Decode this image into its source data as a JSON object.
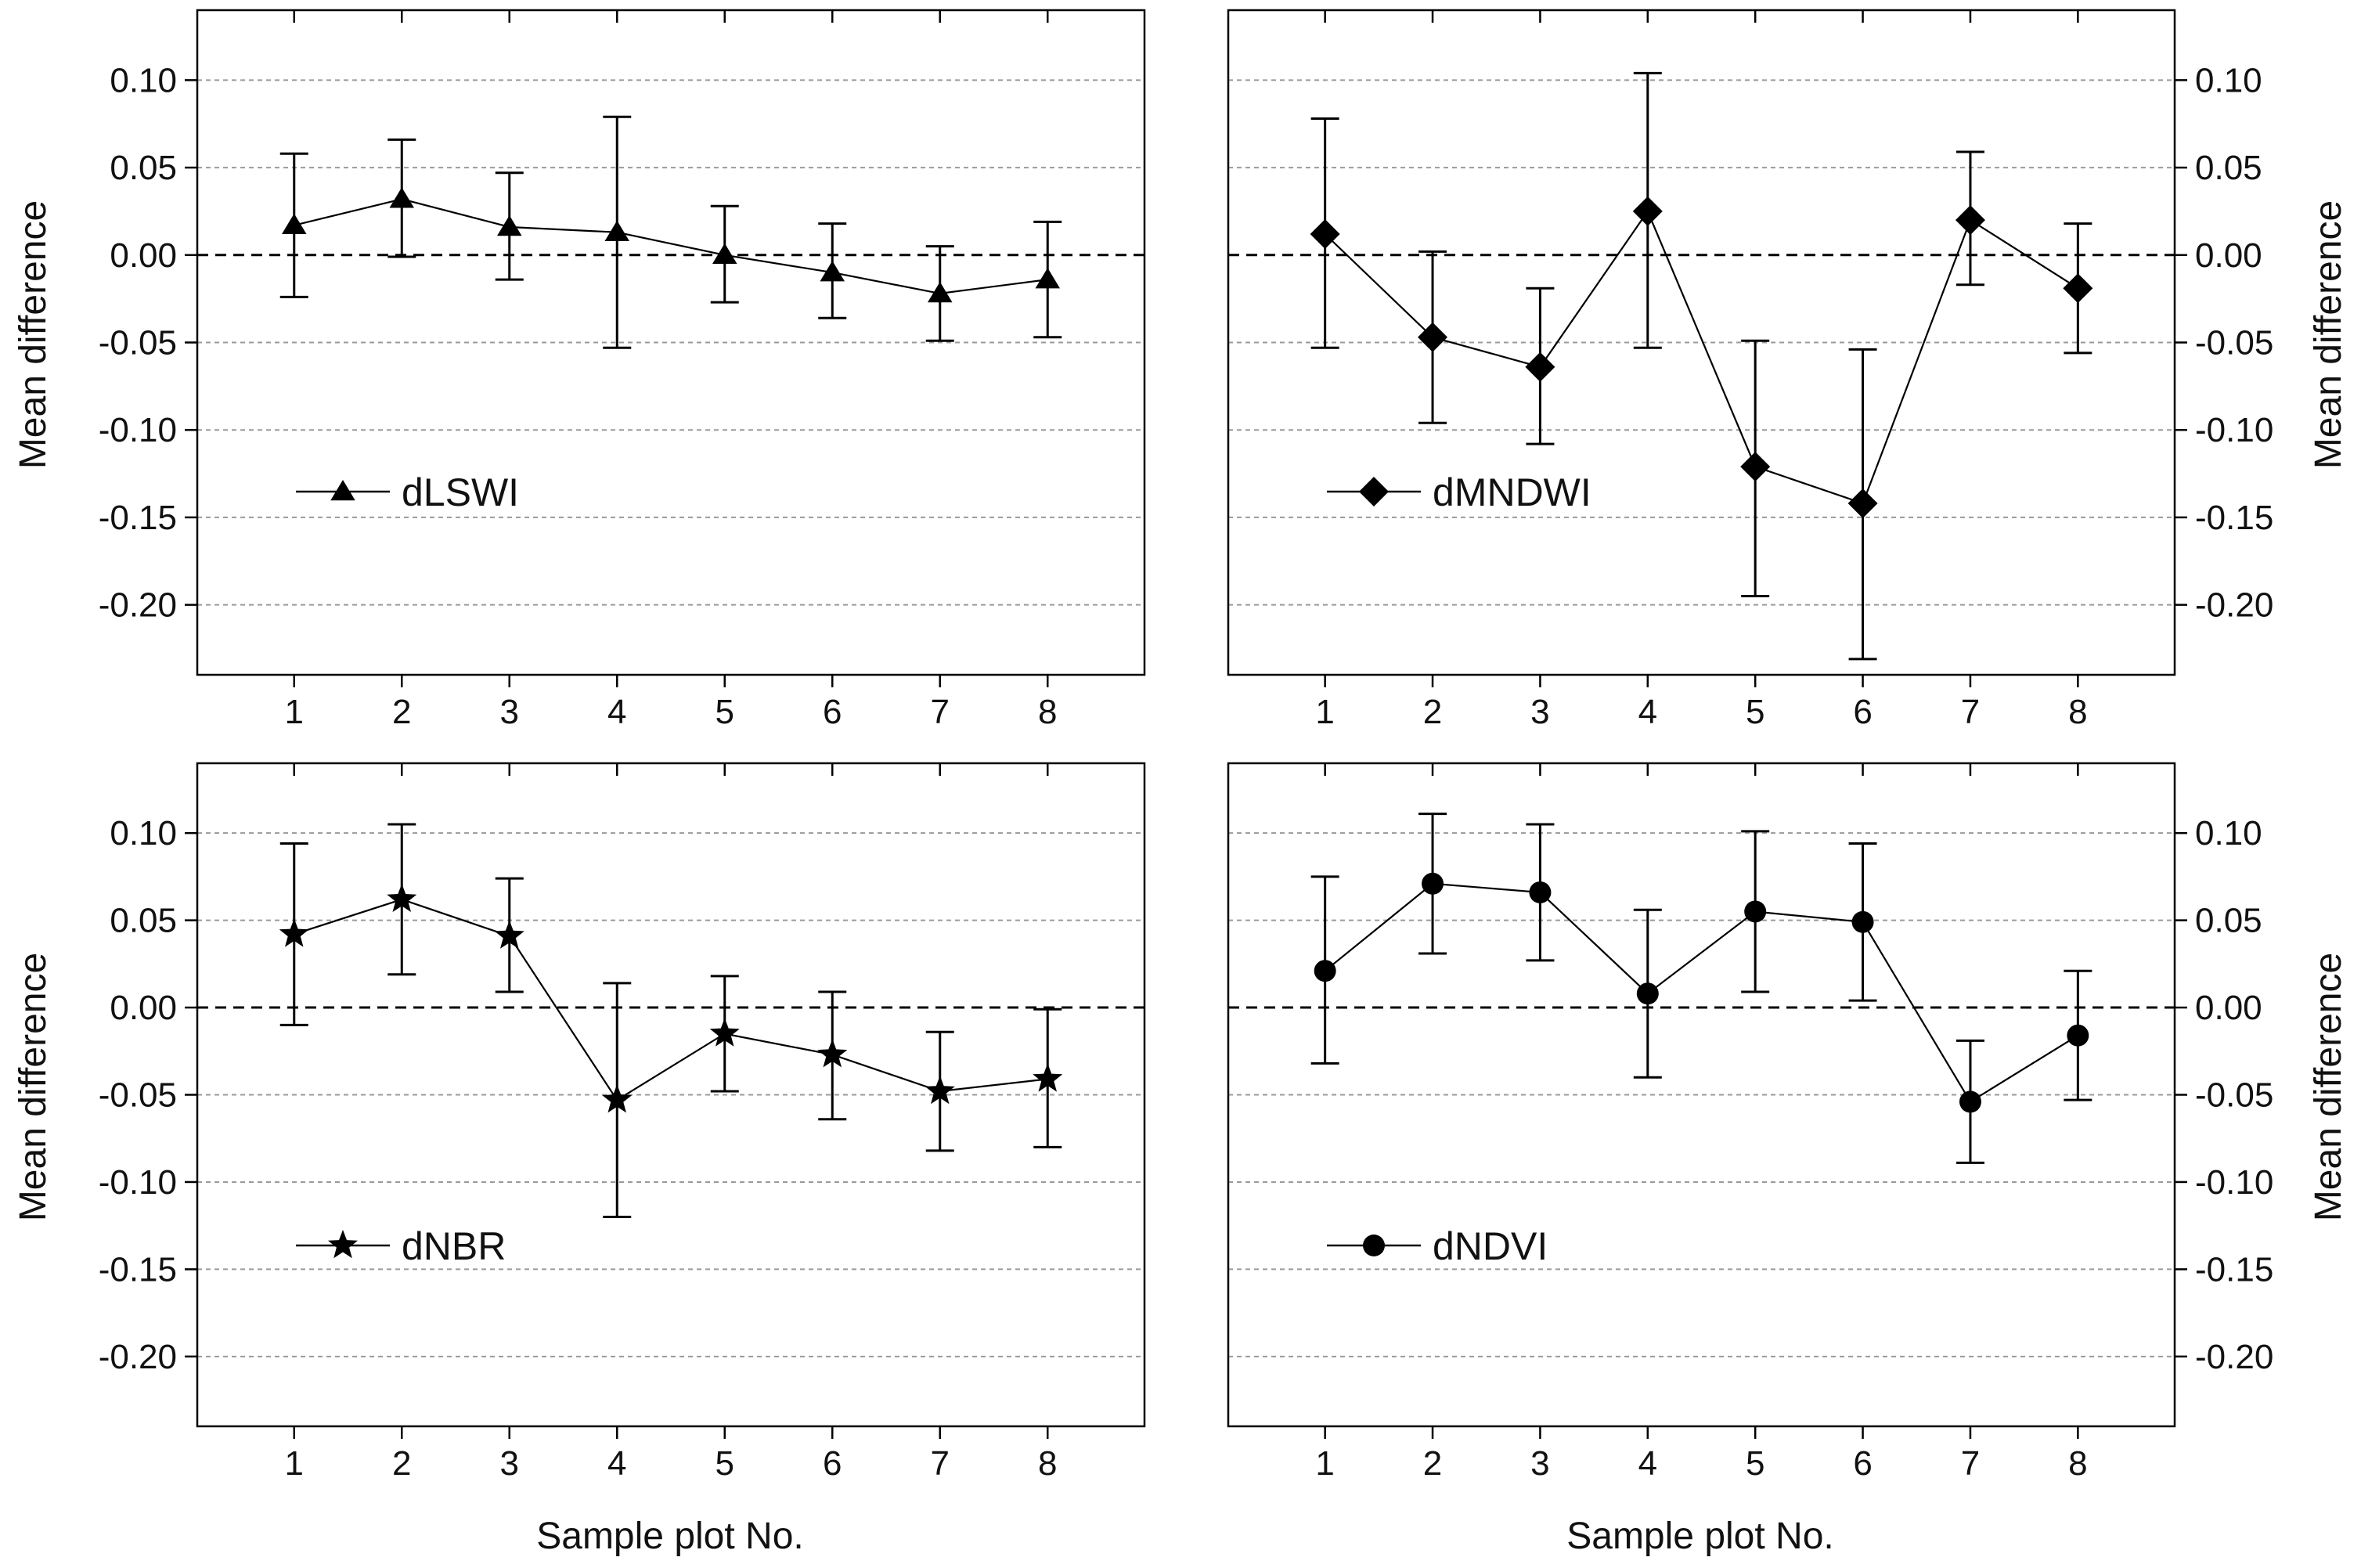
{
  "figure": {
    "xlabel": "Sample plot No."
  },
  "chart_data": [
    {
      "type": "line",
      "panel": "top-left",
      "x": [
        1,
        2,
        3,
        4,
        5,
        6,
        7,
        8
      ],
      "xticks": [
        "1",
        "2",
        "3",
        "4",
        "5",
        "6",
        "7",
        "8"
      ],
      "xlim": [
        0.1,
        8.9
      ],
      "ylim": [
        -0.24,
        0.14
      ],
      "yticks": [
        "0.10",
        "0.05",
        "0.00",
        "-0.05",
        "-0.10",
        "-0.15",
        "-0.20"
      ],
      "ylabel": "Mean difference",
      "yaxis_side": "left",
      "xlabel": "",
      "grid": true,
      "zero_line": "dashed",
      "legend_position": "left-middle",
      "series": [
        {
          "name": "dLSWI",
          "marker": "triangle",
          "values": [
            0.017,
            0.032,
            0.016,
            0.013,
            0.0,
            -0.01,
            -0.022,
            -0.014
          ],
          "err_low": [
            -0.024,
            -0.001,
            -0.014,
            -0.053,
            -0.027,
            -0.036,
            -0.049,
            -0.047
          ],
          "err_high": [
            0.058,
            0.066,
            0.047,
            0.079,
            0.028,
            0.018,
            0.005,
            0.019
          ]
        }
      ]
    },
    {
      "type": "line",
      "panel": "top-right",
      "x": [
        1,
        2,
        3,
        4,
        5,
        6,
        7,
        8
      ],
      "xticks": [
        "1",
        "2",
        "3",
        "4",
        "5",
        "6",
        "7",
        "8"
      ],
      "xlim": [
        0.1,
        8.9
      ],
      "ylim": [
        -0.24,
        0.14
      ],
      "yticks": [
        "0.10",
        "0.05",
        "0.00",
        "-0.05",
        "-0.10",
        "-0.15",
        "-0.20"
      ],
      "ylabel": "Mean difference",
      "yaxis_side": "right",
      "xlabel": "",
      "grid": true,
      "zero_line": "dashed",
      "legend_position": "left-middle",
      "series": [
        {
          "name": "dMNDWI",
          "marker": "diamond",
          "values": [
            0.012,
            -0.047,
            -0.064,
            0.025,
            -0.121,
            -0.142,
            0.02,
            -0.019
          ],
          "err_low": [
            -0.053,
            -0.096,
            -0.108,
            -0.053,
            -0.195,
            -0.231,
            -0.017,
            -0.056
          ],
          "err_high": [
            0.078,
            0.002,
            -0.019,
            0.104,
            -0.049,
            -0.054,
            0.059,
            0.018
          ]
        }
      ]
    },
    {
      "type": "line",
      "panel": "bottom-left",
      "x": [
        1,
        2,
        3,
        4,
        5,
        6,
        7,
        8
      ],
      "xticks": [
        "1",
        "2",
        "3",
        "4",
        "5",
        "6",
        "7",
        "8"
      ],
      "xlim": [
        0.1,
        8.9
      ],
      "ylim": [
        -0.24,
        0.14
      ],
      "yticks": [
        "0.10",
        "0.05",
        "0.00",
        "-0.05",
        "-0.10",
        "-0.15",
        "-0.20"
      ],
      "ylabel": "Mean difference",
      "yaxis_side": "left",
      "xlabel": "Sample plot No.",
      "grid": true,
      "zero_line": "dashed",
      "legend_position": "left-lower",
      "series": [
        {
          "name": "dNBR",
          "marker": "star",
          "values": [
            0.042,
            0.062,
            0.041,
            -0.053,
            -0.015,
            -0.027,
            -0.048,
            -0.041
          ],
          "err_low": [
            -0.01,
            0.019,
            0.009,
            -0.12,
            -0.048,
            -0.064,
            -0.082,
            -0.08
          ],
          "err_high": [
            0.094,
            0.105,
            0.074,
            0.014,
            0.018,
            0.009,
            -0.014,
            -0.001
          ]
        }
      ]
    },
    {
      "type": "line",
      "panel": "bottom-right",
      "x": [
        1,
        2,
        3,
        4,
        5,
        6,
        7,
        8
      ],
      "xticks": [
        "1",
        "2",
        "3",
        "4",
        "5",
        "6",
        "7",
        "8"
      ],
      "xlim": [
        0.1,
        8.9
      ],
      "ylim": [
        -0.24,
        0.14
      ],
      "yticks": [
        "0.10",
        "0.05",
        "0.00",
        "-0.05",
        "-0.10",
        "-0.15",
        "-0.20"
      ],
      "ylabel": "Mean difference",
      "yaxis_side": "right",
      "xlabel": "Sample plot No.",
      "grid": true,
      "zero_line": "dashed",
      "legend_position": "left-lower",
      "series": [
        {
          "name": "dNDVI",
          "marker": "circle",
          "values": [
            0.021,
            0.071,
            0.066,
            0.008,
            0.055,
            0.049,
            -0.054,
            -0.016
          ],
          "err_low": [
            -0.032,
            0.031,
            0.027,
            -0.04,
            0.009,
            0.004,
            -0.089,
            -0.053
          ],
          "err_high": [
            0.075,
            0.111,
            0.105,
            0.056,
            0.101,
            0.094,
            -0.019,
            0.021
          ]
        }
      ]
    }
  ]
}
